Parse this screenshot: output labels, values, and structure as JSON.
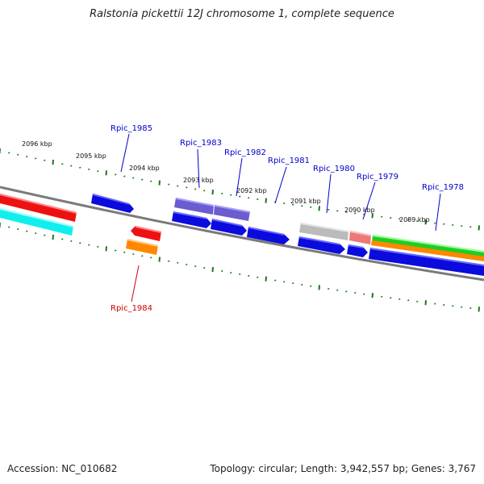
{
  "title": "Ralstonia pickettii 12J chromosome 1, complete sequence",
  "footer": {
    "accession": "Accession: NC_010682",
    "summary": "Topology: circular; Length: 3,942,557 bp; Genes: 3,767"
  },
  "colors": {
    "backbone": "#7a7a7a",
    "tick": "#1a7a1a",
    "label_blue": "#0000cc",
    "label_red": "#cc0000"
  },
  "kbp_ticks": [
    "2096 kbp",
    "2095 kbp",
    "2094 kbp",
    "2093 kbp",
    "2092 kbp",
    "2091 kbp",
    "2090 kbp",
    "2089 kbp"
  ],
  "gene_labels": [
    {
      "text": "Rpic_1985",
      "color": "#0000cc"
    },
    {
      "text": "Rpic_1983",
      "color": "#0000cc"
    },
    {
      "text": "Rpic_1982",
      "color": "#0000cc"
    },
    {
      "text": "Rpic_1981",
      "color": "#0000cc"
    },
    {
      "text": "Rpic_1980",
      "color": "#0000cc"
    },
    {
      "text": "Rpic_1979",
      "color": "#0000cc"
    },
    {
      "text": "Rpic_1978",
      "color": "#0000cc"
    },
    {
      "text": "Rpic_1984",
      "color": "#cc0000"
    }
  ],
  "features": [
    {
      "name": "feature-red-band",
      "color": "#ee1111"
    },
    {
      "name": "feature-cyan-band",
      "color": "#11eeee"
    },
    {
      "name": "gene-rpic-1985",
      "color": "#0b0bdd"
    },
    {
      "name": "gene-rpic-1984-red",
      "color": "#ee1111"
    },
    {
      "name": "gene-rpic-1984-orange",
      "color": "#ff8800"
    },
    {
      "name": "gene-rpic-1983",
      "color": "#6b5ccf"
    },
    {
      "name": "gene-rpic-1982",
      "color": "#6b5ccf"
    },
    {
      "name": "gene-rpic-1980",
      "color": "#bbbbbb"
    },
    {
      "name": "gene-rpic-1979",
      "color": "#ee7777"
    },
    {
      "name": "feature-green-band",
      "color": "#22cc22"
    },
    {
      "name": "feature-orange-band",
      "color": "#ff8800"
    }
  ]
}
